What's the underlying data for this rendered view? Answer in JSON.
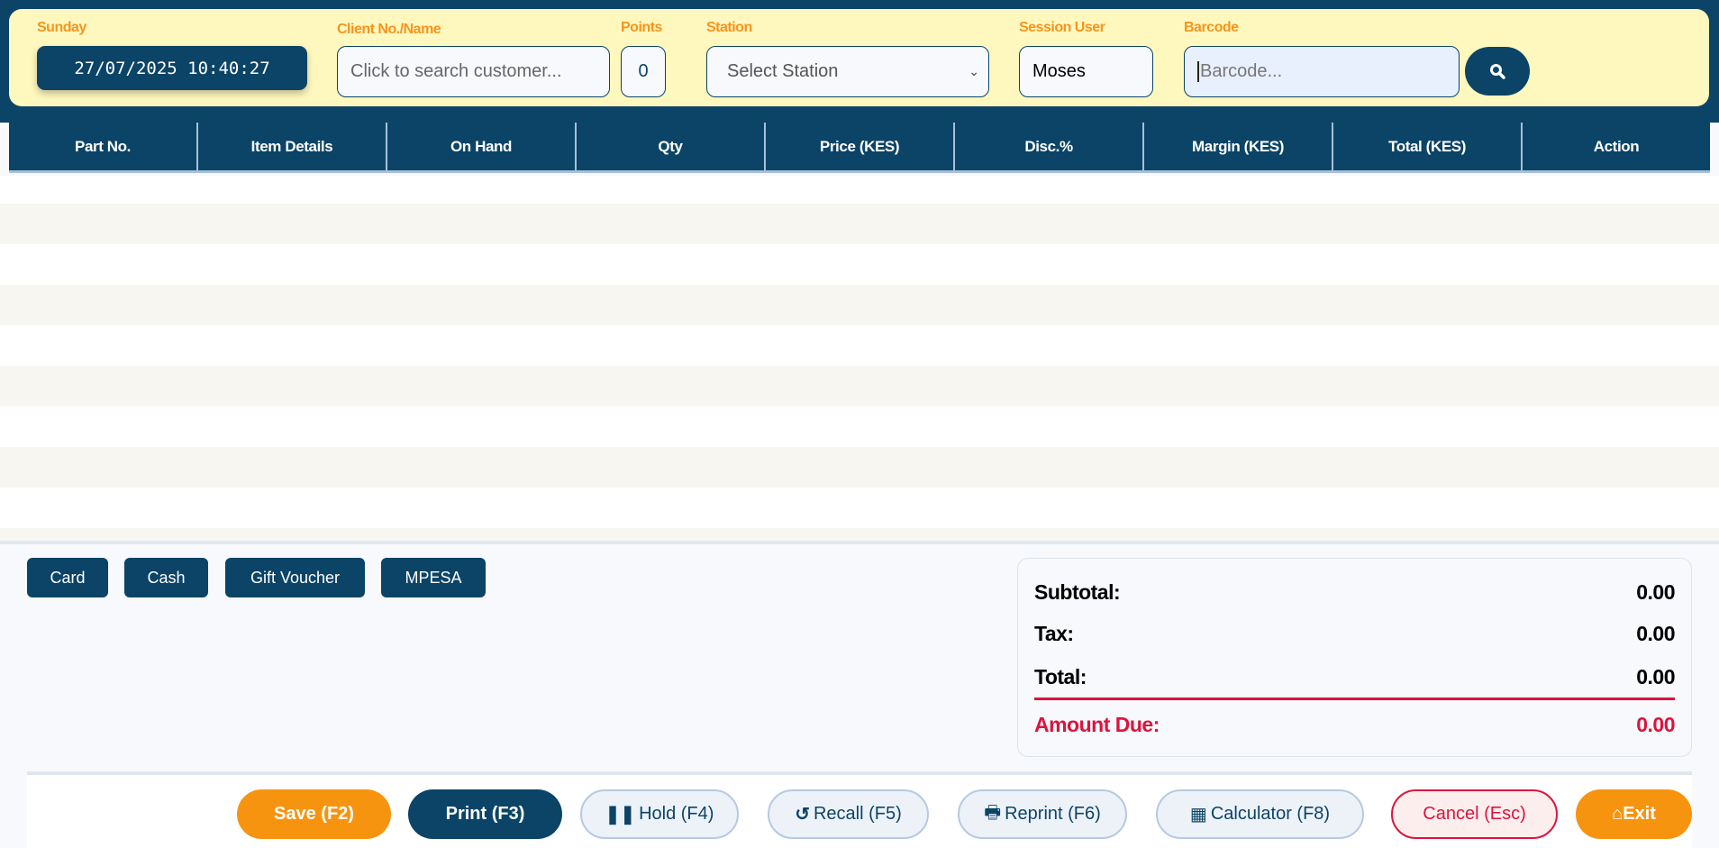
{
  "header": {
    "day_label": "Sunday",
    "datetime": "27/07/2025 10:40:27",
    "client_label": "Client No./Name",
    "client_placeholder": "Click to search customer...",
    "points_label": "Points",
    "points_value": "0",
    "station_label": "Station",
    "station_selected": "Select Station",
    "session_user_label": "Session User",
    "session_user_value": "Moses",
    "barcode_label": "Barcode",
    "barcode_placeholder": "Barcode..."
  },
  "table": {
    "columns": [
      "Part No.",
      "Item Details",
      "On Hand",
      "Qty",
      "Price (KES)",
      "Disc.%",
      "Margin (KES)",
      "Total (KES)",
      "Action"
    ],
    "rows": []
  },
  "payment_methods": [
    "Card",
    "Cash",
    "Gift Voucher",
    "MPESA"
  ],
  "summary": {
    "subtotal_label": "Subtotal:",
    "subtotal": "0.00",
    "tax_label": "Tax:",
    "tax": "0.00",
    "total_label": "Total:",
    "total": "0.00",
    "amount_due_label": "Amount Due:",
    "amount_due": "0.00"
  },
  "actions": {
    "save": "Save (F2)",
    "print": "Print (F3)",
    "hold": "Hold (F4)",
    "recall": "Recall (F5)",
    "reprint": "Reprint (F6)",
    "calculator": "Calculator (F8)",
    "cancel": "Cancel (Esc)",
    "exit": "Exit"
  },
  "colors": {
    "navy": "#0b4466",
    "orange": "#f7941d",
    "panel": "#fff8be",
    "due_red": "#dc143c"
  }
}
